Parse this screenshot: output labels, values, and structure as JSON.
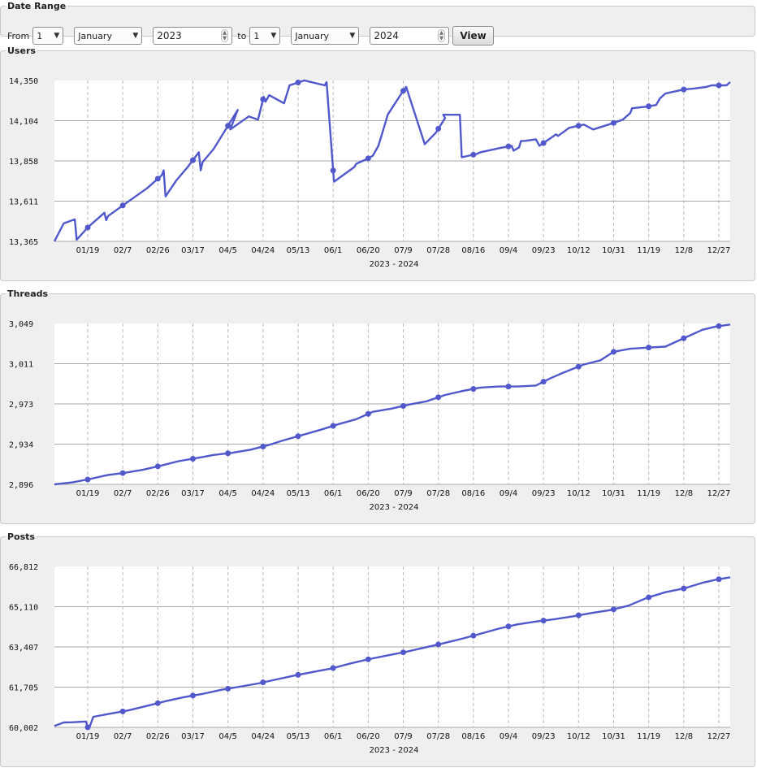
{
  "controls": {
    "legend": "Date Range",
    "from_label": "From",
    "to_label": "to",
    "from_day": "1",
    "from_month": "January",
    "from_year": "2023",
    "to_day": "1",
    "to_month": "January",
    "to_year": "2024",
    "view_label": "View"
  },
  "chart_data": [
    {
      "type": "line",
      "title": "Users",
      "xlabel": "2023 - 2024",
      "x_ticks": [
        "01/19",
        "02/7",
        "02/26",
        "03/17",
        "04/5",
        "04/24",
        "05/13",
        "06/1",
        "06/20",
        "07/9",
        "07/28",
        "08/16",
        "09/4",
        "09/23",
        "10/12",
        "10/31",
        "11/19",
        "12/8",
        "12/27"
      ],
      "y_ticks": [
        "14,350",
        "14,104",
        "13,858",
        "13,611",
        "13,365"
      ],
      "ylim": [
        13365,
        14350
      ],
      "grid": true,
      "color": "#5058cc",
      "series": [
        {
          "x_day": [
            0,
            5,
            11,
            12,
            18,
            27,
            28,
            29,
            40,
            50,
            58,
            59,
            60,
            66,
            72,
            78,
            79,
            80,
            86,
            99,
            95,
            105,
            110,
            113,
            114,
            116,
            124,
            127,
            135,
            146,
            147,
            151,
            162,
            163,
            169,
            172,
            175,
            179,
            180,
            188,
            190,
            200,
            206,
            211,
            210,
            213,
            219,
            220,
            228,
            230,
            240,
            247,
            248,
            251,
            252,
            254,
            260,
            262,
            271,
            272,
            278,
            286,
            291,
            302,
            307,
            311,
            312,
            320,
            325,
            327,
            330,
            340,
            345,
            352,
            355,
            359,
            363,
            364,
            365
          ],
          "values": [
            13365,
            13475,
            13500,
            13375,
            13450,
            13540,
            13495,
            13520,
            13610,
            13690,
            13770,
            13800,
            13640,
            13740,
            13820,
            13910,
            13800,
            13850,
            13930,
            14170,
            14050,
            14130,
            14110,
            14250,
            14220,
            14260,
            14210,
            14320,
            14350,
            14320,
            14340,
            13730,
            13820,
            13840,
            13870,
            13890,
            13950,
            14100,
            14140,
            14280,
            14310,
            13960,
            14030,
            14120,
            14140,
            14140,
            14140,
            13880,
            13900,
            13910,
            13935,
            13950,
            13920,
            13940,
            13980,
            13980,
            13990,
            13950,
            14020,
            14010,
            14060,
            14080,
            14050,
            14090,
            14110,
            14150,
            14180,
            14190,
            14200,
            14240,
            14270,
            14295,
            14300,
            14310,
            14320,
            14320,
            14320,
            14330,
            14340
          ]
        }
      ]
    },
    {
      "type": "line",
      "title": "Threads",
      "xlabel": "2023 - 2024",
      "x_ticks": [
        "01/19",
        "02/7",
        "02/26",
        "03/17",
        "04/5",
        "04/24",
        "05/13",
        "06/1",
        "06/20",
        "07/9",
        "07/28",
        "08/16",
        "09/4",
        "09/23",
        "10/12",
        "10/31",
        "11/19",
        "12/8",
        "12/27"
      ],
      "y_ticks": [
        "3,049",
        "3,011",
        "2,973",
        "2,934",
        "2,896"
      ],
      "ylim": [
        2896,
        3049
      ],
      "grid": true,
      "color": "#5058cc",
      "series": [
        {
          "x_day": [
            0,
            10,
            19,
            29,
            38,
            48,
            58,
            67,
            77,
            86,
            96,
            106,
            115,
            124,
            134,
            144,
            153,
            163,
            172,
            182,
            192,
            201,
            211,
            221,
            230,
            240,
            250,
            260,
            268,
            276,
            286,
            295,
            302,
            311,
            320,
            330,
            340,
            350,
            357,
            365
          ],
          "values": [
            2896,
            2898,
            2901,
            2905,
            2907,
            2910,
            2914,
            2918,
            2921,
            2924,
            2926,
            2929,
            2933,
            2938,
            2943,
            2948,
            2953,
            2958,
            2965,
            2968,
            2972,
            2975,
            2981,
            2985,
            2988,
            2989,
            2989,
            2990,
            2997,
            3003,
            3010,
            3014,
            3022,
            3025,
            3026,
            3027,
            3035,
            3043,
            3046,
            3048
          ]
        }
      ]
    },
    {
      "type": "line",
      "title": "Posts",
      "xlabel": "2023 - 2024",
      "x_ticks": [
        "01/19",
        "02/7",
        "02/26",
        "03/17",
        "04/5",
        "04/24",
        "05/13",
        "06/1",
        "06/20",
        "07/9",
        "07/28",
        "08/16",
        "09/4",
        "09/23",
        "10/12",
        "10/31",
        "11/19",
        "12/8",
        "12/27"
      ],
      "y_ticks": [
        "66,812",
        "65,110",
        "63,407",
        "61,705",
        "60,002"
      ],
      "ylim": [
        60002,
        66812
      ],
      "grid": true,
      "color": "#5058cc",
      "series": [
        {
          "x_day": [
            0,
            5,
            10,
            17,
            18,
            19,
            21,
            30,
            40,
            50,
            60,
            70,
            80,
            90,
            100,
            110,
            120,
            130,
            140,
            150,
            160,
            170,
            180,
            190,
            200,
            210,
            220,
            230,
            240,
            250,
            260,
            270,
            280,
            290,
            300,
            310,
            320,
            330,
            340,
            350,
            358,
            365
          ],
          "values": [
            60060,
            60210,
            60220,
            60250,
            60002,
            60020,
            60450,
            60580,
            60720,
            60910,
            61110,
            61280,
            61420,
            61590,
            61720,
            61860,
            62030,
            62200,
            62350,
            62500,
            62710,
            62890,
            63050,
            63200,
            63380,
            63560,
            63750,
            63960,
            64180,
            64360,
            64480,
            64580,
            64700,
            64840,
            64960,
            65150,
            65480,
            65720,
            65880,
            66120,
            66260,
            66350
          ]
        }
      ]
    }
  ]
}
